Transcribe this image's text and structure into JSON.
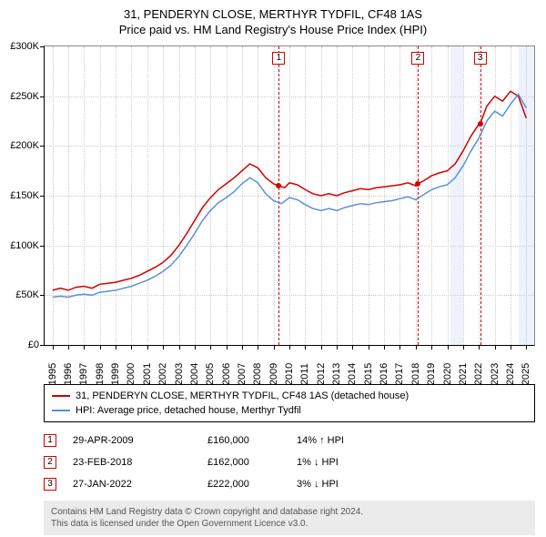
{
  "title": {
    "line1": "31, PENDERYN CLOSE, MERTHYR TYDFIL, CF48 1AS",
    "line2": "Price paid vs. HM Land Registry's House Price Index (HPI)",
    "fontsize": 13,
    "color": "#000000"
  },
  "chart": {
    "type": "line",
    "background_color": "#ffffff",
    "grid_color": "#cccccc",
    "axis_color": "#000000",
    "xlim": [
      1994.5,
      2025.5
    ],
    "ylim": [
      0,
      300000
    ],
    "y_ticks": [
      {
        "value": 0,
        "label": "£0"
      },
      {
        "value": 50000,
        "label": "£50K"
      },
      {
        "value": 100000,
        "label": "£100K"
      },
      {
        "value": 150000,
        "label": "£150K"
      },
      {
        "value": 200000,
        "label": "£200K"
      },
      {
        "value": 250000,
        "label": "£250K"
      },
      {
        "value": 300000,
        "label": "£300K"
      }
    ],
    "x_ticks": [
      1995,
      1996,
      1997,
      1998,
      1999,
      2000,
      2001,
      2002,
      2003,
      2004,
      2005,
      2006,
      2007,
      2008,
      2009,
      2010,
      2011,
      2012,
      2013,
      2014,
      2015,
      2016,
      2017,
      2018,
      2019,
      2020,
      2021,
      2022,
      2023,
      2024,
      2025
    ],
    "tick_fontsize": 11,
    "shaded_bands": [
      {
        "from": 2020.2,
        "to": 2021.0,
        "color": "#edf2fb"
      },
      {
        "from": 2024.5,
        "to": 2025.5,
        "color": "#edf2fb"
      }
    ],
    "series": [
      {
        "name": "property",
        "color": "#d10000",
        "line_width": 1.5,
        "data": [
          [
            1995.0,
            55000
          ],
          [
            1995.5,
            57000
          ],
          [
            1996.0,
            55000
          ],
          [
            1996.5,
            58000
          ],
          [
            1997.0,
            59000
          ],
          [
            1997.5,
            57000
          ],
          [
            1998.0,
            61000
          ],
          [
            1998.5,
            62000
          ],
          [
            1999.0,
            63000
          ],
          [
            1999.5,
            65000
          ],
          [
            2000.0,
            67000
          ],
          [
            2000.5,
            70000
          ],
          [
            2001.0,
            74000
          ],
          [
            2001.5,
            78000
          ],
          [
            2002.0,
            83000
          ],
          [
            2002.5,
            90000
          ],
          [
            2003.0,
            100000
          ],
          [
            2003.5,
            112000
          ],
          [
            2004.0,
            125000
          ],
          [
            2004.5,
            138000
          ],
          [
            2005.0,
            148000
          ],
          [
            2005.5,
            156000
          ],
          [
            2006.0,
            162000
          ],
          [
            2006.5,
            168000
          ],
          [
            2007.0,
            175000
          ],
          [
            2007.5,
            182000
          ],
          [
            2008.0,
            178000
          ],
          [
            2008.5,
            168000
          ],
          [
            2009.0,
            162000
          ],
          [
            2009.33,
            160000
          ],
          [
            2009.7,
            158000
          ],
          [
            2010.0,
            163000
          ],
          [
            2010.5,
            161000
          ],
          [
            2011.0,
            156000
          ],
          [
            2011.5,
            152000
          ],
          [
            2012.0,
            150000
          ],
          [
            2012.5,
            152000
          ],
          [
            2013.0,
            150000
          ],
          [
            2013.5,
            153000
          ],
          [
            2014.0,
            155000
          ],
          [
            2014.5,
            157000
          ],
          [
            2015.0,
            156000
          ],
          [
            2015.5,
            158000
          ],
          [
            2016.0,
            159000
          ],
          [
            2016.5,
            160000
          ],
          [
            2017.0,
            161000
          ],
          [
            2017.5,
            163000
          ],
          [
            2018.0,
            160000
          ],
          [
            2018.15,
            162000
          ],
          [
            2018.5,
            165000
          ],
          [
            2019.0,
            170000
          ],
          [
            2019.5,
            173000
          ],
          [
            2020.0,
            175000
          ],
          [
            2020.5,
            182000
          ],
          [
            2021.0,
            195000
          ],
          [
            2021.5,
            210000
          ],
          [
            2022.0,
            222000
          ],
          [
            2022.08,
            222000
          ],
          [
            2022.5,
            240000
          ],
          [
            2023.0,
            250000
          ],
          [
            2023.5,
            245000
          ],
          [
            2024.0,
            255000
          ],
          [
            2024.5,
            250000
          ],
          [
            2025.0,
            228000
          ]
        ]
      },
      {
        "name": "hpi",
        "color": "#5b8fd6",
        "line_width": 1.5,
        "data": [
          [
            1995.0,
            48000
          ],
          [
            1995.5,
            49000
          ],
          [
            1996.0,
            48000
          ],
          [
            1996.5,
            50000
          ],
          [
            1997.0,
            51000
          ],
          [
            1997.5,
            50000
          ],
          [
            1998.0,
            53000
          ],
          [
            1998.5,
            54000
          ],
          [
            1999.0,
            55000
          ],
          [
            1999.5,
            57000
          ],
          [
            2000.0,
            59000
          ],
          [
            2000.5,
            62000
          ],
          [
            2001.0,
            65000
          ],
          [
            2001.5,
            69000
          ],
          [
            2002.0,
            74000
          ],
          [
            2002.5,
            80000
          ],
          [
            2003.0,
            89000
          ],
          [
            2003.5,
            100000
          ],
          [
            2004.0,
            112000
          ],
          [
            2004.5,
            125000
          ],
          [
            2005.0,
            135000
          ],
          [
            2005.5,
            143000
          ],
          [
            2006.0,
            148000
          ],
          [
            2006.5,
            154000
          ],
          [
            2007.0,
            162000
          ],
          [
            2007.5,
            168000
          ],
          [
            2008.0,
            163000
          ],
          [
            2008.5,
            152000
          ],
          [
            2009.0,
            145000
          ],
          [
            2009.5,
            142000
          ],
          [
            2010.0,
            148000
          ],
          [
            2010.5,
            146000
          ],
          [
            2011.0,
            141000
          ],
          [
            2011.5,
            137000
          ],
          [
            2012.0,
            135000
          ],
          [
            2012.5,
            137000
          ],
          [
            2013.0,
            135000
          ],
          [
            2013.5,
            138000
          ],
          [
            2014.0,
            140000
          ],
          [
            2014.5,
            142000
          ],
          [
            2015.0,
            141000
          ],
          [
            2015.5,
            143000
          ],
          [
            2016.0,
            144000
          ],
          [
            2016.5,
            145000
          ],
          [
            2017.0,
            147000
          ],
          [
            2017.5,
            149000
          ],
          [
            2018.0,
            146000
          ],
          [
            2018.5,
            151000
          ],
          [
            2019.0,
            156000
          ],
          [
            2019.5,
            159000
          ],
          [
            2020.0,
            161000
          ],
          [
            2020.5,
            168000
          ],
          [
            2021.0,
            180000
          ],
          [
            2021.5,
            195000
          ],
          [
            2022.0,
            208000
          ],
          [
            2022.5,
            225000
          ],
          [
            2023.0,
            235000
          ],
          [
            2023.5,
            230000
          ],
          [
            2024.0,
            242000
          ],
          [
            2024.5,
            252000
          ],
          [
            2025.0,
            238000
          ]
        ]
      }
    ],
    "markers": [
      {
        "n": "1",
        "x": 2009.33,
        "y": 160000,
        "dot_color": "#d10000",
        "line_color": "#d10000",
        "badge_border": "#d10000",
        "badge_text": "#000000"
      },
      {
        "n": "2",
        "x": 2018.15,
        "y": 162000,
        "dot_color": "#d10000",
        "line_color": "#d10000",
        "badge_border": "#d10000",
        "badge_text": "#000000"
      },
      {
        "n": "3",
        "x": 2022.08,
        "y": 222000,
        "dot_color": "#d10000",
        "line_color": "#d10000",
        "badge_border": "#d10000",
        "badge_text": "#000000"
      }
    ]
  },
  "legend": {
    "border_color": "#000000",
    "fontsize": 11,
    "items": [
      {
        "color": "#d10000",
        "label": "31, PENDERYN CLOSE, MERTHYR TYDFIL, CF48 1AS (detached house)"
      },
      {
        "color": "#5b8fd6",
        "label": "HPI: Average price, detached house, Merthyr Tydfil"
      }
    ]
  },
  "points_table": {
    "fontsize": 11,
    "badge_border": "#d10000",
    "rows": [
      {
        "n": "1",
        "date": "29-APR-2009",
        "price": "£160,000",
        "diff": "14% ↑ HPI"
      },
      {
        "n": "2",
        "date": "23-FEB-2018",
        "price": "£162,000",
        "diff": "1% ↓ HPI"
      },
      {
        "n": "3",
        "date": "27-JAN-2022",
        "price": "£222,000",
        "diff": "3% ↓ HPI"
      }
    ]
  },
  "attribution": {
    "background": "#ebebeb",
    "color": "#555555",
    "fontsize": 10,
    "line1": "Contains HM Land Registry data © Crown copyright and database right 2024.",
    "line2": "This data is licensed under the Open Government Licence v3.0."
  }
}
